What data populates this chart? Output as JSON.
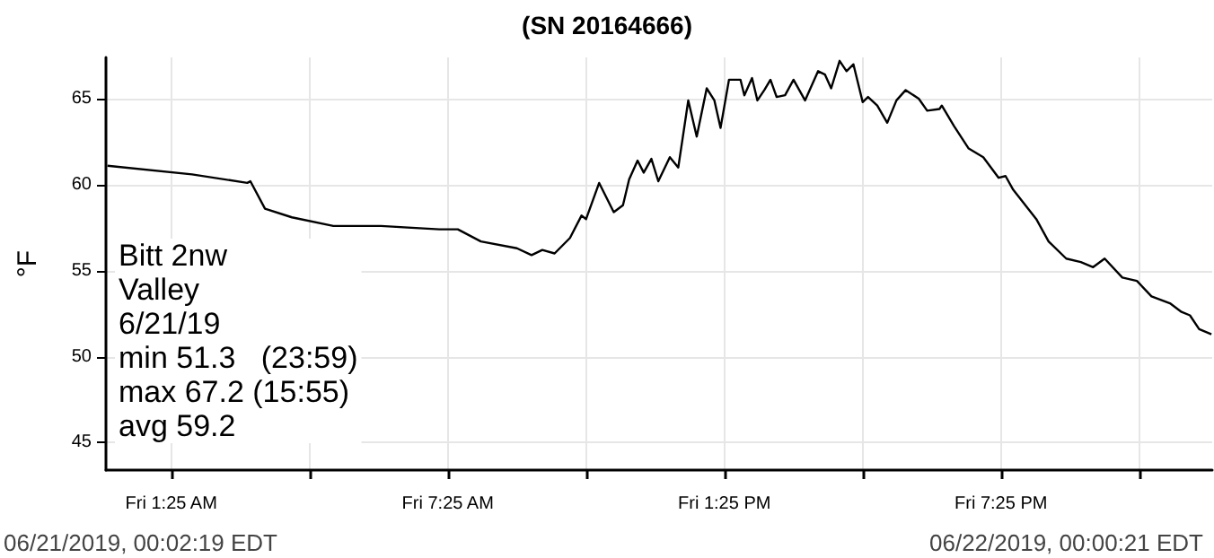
{
  "chart_data": {
    "type": "line",
    "title": "(SN 20164666)",
    "ylabel": "°F",
    "annotations": [
      "Bitt 2nw\nValley\n6/21/19\nmin 51.3   (23:59)\nmax 67.2 (15:55)\navg 59.2",
      "06/21/2019, 00:02:19 EDT",
      "06/22/2019, 00:00:21 EDT"
    ],
    "x": [
      "2019-06-21T00:02",
      "2019-06-21T01:52",
      "2019-06-21T03:04",
      "2019-06-21T03:08",
      "2019-06-21T03:27",
      "2019-06-21T04:02",
      "2019-06-21T04:56",
      "2019-06-21T05:58",
      "2019-06-21T07:14",
      "2019-06-21T07:38",
      "2019-06-21T08:08",
      "2019-06-21T08:55",
      "2019-06-21T09:14",
      "2019-06-21T09:28",
      "2019-06-21T09:44",
      "2019-06-21T10:04",
      "2019-06-21T10:19",
      "2019-06-21T10:25",
      "2019-06-21T10:42",
      "2019-06-21T11:01",
      "2019-06-21T11:13",
      "2019-06-21T11:21",
      "2019-06-21T11:32",
      "2019-06-21T11:40",
      "2019-06-21T11:50",
      "2019-06-21T11:59",
      "2019-06-21T12:14",
      "2019-06-21T12:25",
      "2019-06-21T12:38",
      "2019-06-21T12:49",
      "2019-06-21T13:02",
      "2019-06-21T13:12",
      "2019-06-21T13:20",
      "2019-06-21T13:31",
      "2019-06-21T13:46",
      "2019-06-21T13:51",
      "2019-06-21T14:01",
      "2019-06-21T14:08",
      "2019-06-21T14:17",
      "2019-06-21T14:25",
      "2019-06-21T14:33",
      "2019-06-21T14:44",
      "2019-06-21T14:55",
      "2019-06-21T15:10",
      "2019-06-21T15:27",
      "2019-06-21T15:36",
      "2019-06-21T15:44",
      "2019-06-21T15:55",
      "2019-06-21T16:04",
      "2019-06-21T16:13",
      "2019-06-21T16:25",
      "2019-06-21T16:32",
      "2019-06-21T16:44",
      "2019-06-21T16:57",
      "2019-06-21T17:09",
      "2019-06-21T17:21",
      "2019-06-21T17:38",
      "2019-06-21T17:49",
      "2019-06-21T18:05",
      "2019-06-21T18:08",
      "2019-06-21T18:24",
      "2019-06-21T18:43",
      "2019-06-21T19:02",
      "2019-06-21T19:22",
      "2019-06-21T19:31",
      "2019-06-21T19:41",
      "2019-06-21T20:11",
      "2019-06-21T20:27",
      "2019-06-21T20:50",
      "2019-06-21T21:09",
      "2019-06-21T21:25",
      "2019-06-21T21:40",
      "2019-06-21T22:03",
      "2019-06-21T22:22",
      "2019-06-21T22:41",
      "2019-06-21T23:05",
      "2019-06-21T23:20",
      "2019-06-21T23:31",
      "2019-06-21T23:43",
      "2019-06-21T23:59"
    ],
    "series": [
      {
        "color": "#000000",
        "values": [
          61.1,
          60.6,
          60.1,
          60.2,
          58.6,
          58.1,
          57.6,
          57.6,
          57.4,
          57.4,
          56.7,
          56.3,
          55.9,
          56.2,
          56.0,
          56.9,
          58.2,
          58.0,
          60.1,
          58.4,
          58.8,
          60.3,
          61.4,
          60.7,
          61.5,
          60.2,
          61.6,
          61.0,
          64.9,
          62.8,
          65.6,
          64.9,
          63.3,
          66.1,
          66.1,
          65.2,
          66.2,
          64.9,
          65.5,
          66.1,
          65.1,
          65.2,
          66.1,
          64.9,
          66.6,
          66.4,
          65.6,
          67.2,
          66.6,
          67.0,
          64.8,
          65.1,
          64.6,
          63.6,
          64.9,
          65.5,
          65.0,
          64.3,
          64.4,
          64.6,
          63.4,
          62.1,
          61.6,
          60.4,
          60.5,
          59.7,
          58.0,
          56.7,
          55.7,
          55.5,
          55.2,
          55.7,
          54.6,
          54.4,
          53.5,
          53.1,
          52.6,
          52.4,
          51.6,
          51.3
        ]
      }
    ],
    "xlim": [
      "2019-06-21T00:00",
      "2019-06-22T00:00"
    ],
    "xticks": [
      {
        "value": "2019-06-21T01:25",
        "label": "Fri 1:25 AM"
      },
      {
        "value": "2019-06-21T04:25",
        "label": null
      },
      {
        "value": "2019-06-21T07:25",
        "label": "Fri 7:25 AM"
      },
      {
        "value": "2019-06-21T10:25",
        "label": null
      },
      {
        "value": "2019-06-21T13:25",
        "label": "Fri 1:25 PM"
      },
      {
        "value": "2019-06-21T16:25",
        "label": null
      },
      {
        "value": "2019-06-21T19:25",
        "label": "Fri 7:25 PM"
      },
      {
        "value": "2019-06-21T22:25",
        "label": null
      }
    ],
    "ylim": [
      43.4,
      67.4
    ],
    "yticks": [
      45,
      50,
      55,
      60,
      65
    ],
    "grid": true,
    "marker": "none",
    "line_style": "solid"
  }
}
